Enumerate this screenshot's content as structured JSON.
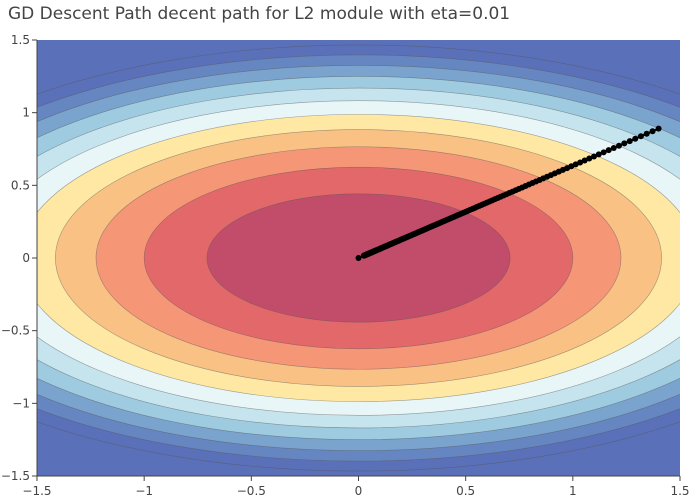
{
  "chart_data": {
    "type": "contour",
    "title": "GD Descent Path decent path for L2 module with eta=0.01",
    "xlabel": "",
    "ylabel": "",
    "xlim": [
      -1.5,
      1.5
    ],
    "ylim": [
      -1.5,
      1.5
    ],
    "x_ticks": [
      "−1.5",
      "−1",
      "−0.5",
      "0",
      "0.5",
      "1",
      "1.5"
    ],
    "y_ticks": [
      "1.5",
      "1",
      "0.5",
      "0",
      "−0.5",
      "−1",
      "−1.5"
    ],
    "contour": {
      "function": "x^2 + 2.56*y^2",
      "levels": [
        0.5,
        1.0,
        1.5,
        2.0,
        2.5,
        3.0,
        3.5,
        4.0,
        4.5,
        5.0,
        5.5
      ],
      "colors": [
        "#c24d6b",
        "#e3686a",
        "#f59677",
        "#fac185",
        "#fee8a3",
        "#e9f6f8",
        "#c5e4ee",
        "#9ecbe0",
        "#7aa3cd",
        "#6686c1",
        "#5a70b8",
        "#5a70b8"
      ]
    },
    "series": [
      {
        "type": "path",
        "start": [
          1.4,
          0.89
        ],
        "end": [
          0.0,
          0.0
        ],
        "points": 200,
        "geometric_ratio": 0.98,
        "color": "#000000"
      }
    ],
    "grid": false,
    "legend": "none"
  }
}
